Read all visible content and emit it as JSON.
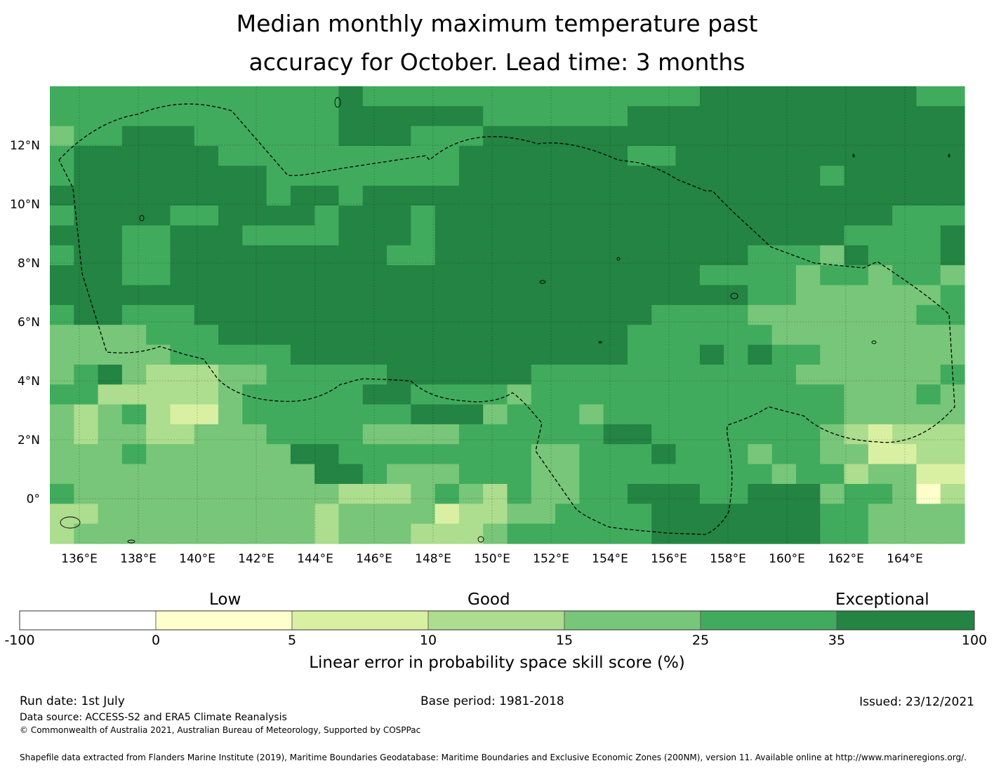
{
  "title_line1": "Median monthly maximum temperature past",
  "title_line2": "accuracy for October. Lead time: 3 months",
  "map": {
    "lon_labels": [
      "136°E",
      "138°E",
      "140°E",
      "142°E",
      "144°E",
      "146°E",
      "148°E",
      "150°E",
      "152°E",
      "154°E",
      "156°E",
      "158°E",
      "160°E",
      "162°E",
      "164°E"
    ],
    "lat_labels": [
      "12°N",
      "10°N",
      "8°N",
      "6°N",
      "4°N",
      "2°N",
      "0°"
    ],
    "lon_range": [
      135.0,
      166.0
    ],
    "lat_range": [
      -1.5,
      14.0
    ],
    "grid_cell_degrees": 0.833,
    "boundary": "dashed EEZ outline",
    "grid": true
  },
  "colorbar": {
    "category_labels": [
      "Low",
      "Good",
      "Exceptional"
    ],
    "ticks": [
      "-100",
      "0",
      "5",
      "10",
      "15",
      "25",
      "35",
      "100"
    ],
    "colors": [
      "#ffffff",
      "#ffffcc",
      "#d9f0a3",
      "#addd8e",
      "#78c679",
      "#41ab5d",
      "#238443"
    ],
    "title": "Linear error in probability space skill score (%)"
  },
  "footer": {
    "run_date": "Run date: 1st July",
    "base_period": "Base period: 1981-2018",
    "issued": "Issued: 23/12/2021",
    "data_source": "Data source: ACCESS-S2 and ERA5 Climate Reanalysis",
    "copyright": "© Commonwealth of Australia 2021, Australian Bureau of Meteorology, Supported by COSPPac",
    "shapefile": "Shapefile data extracted from Flanders Marine Institute (2019), Maritime Boundaries Geodatabase: Maritime Boundaries and Exclusive Economic Zones (200NM), version 11. Available online at http://www.marineregions.org/."
  }
}
